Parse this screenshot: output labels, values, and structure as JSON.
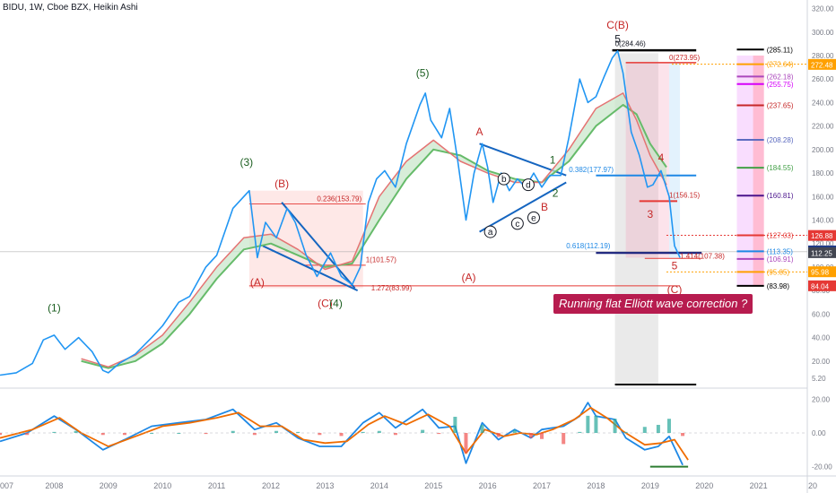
{
  "header": {
    "title": "BIDU, 1W, Cboe BZX, Heikin Ashi"
  },
  "callout": {
    "text": "Running flat Elliott wave correction ?"
  },
  "colors": {
    "price_line": "#2196f3",
    "price_dark": "#434651",
    "ema_fast": "#e57373",
    "ema_slow": "#66bb6a",
    "ema_fill": "#c8e6c9",
    "annotation_red": "#c62828",
    "annotation_green": "#1b5e20",
    "triangle_blue": "#1565c0",
    "macd_blue": "#1e88e5",
    "macd_orange": "#ef6c00",
    "hist_pos": "#26a69a",
    "hist_neg": "#ef5350"
  },
  "chart_data": [
    {
      "type": "line",
      "title": "BIDU, 1W, Cboe BZX, Heikin Ashi",
      "x_ticks": [
        "007",
        "2008",
        "2009",
        "2010",
        "2011",
        "2012",
        "2013",
        "2014",
        "2015",
        "2016",
        "2017",
        "2018",
        "2019",
        "2020",
        "2021",
        "20"
      ],
      "y_ticks": [
        "320.00",
        "300.00",
        "280.00",
        "260.00",
        "240.00",
        "220.00",
        "200.00",
        "180.00",
        "160.00",
        "140.00",
        "120.00",
        "100.00",
        "80.00",
        "60.00",
        "40.00",
        "20.00",
        "5.20"
      ],
      "ylim": [
        0,
        325
      ],
      "xlim": [
        2007.0,
        2021.9
      ],
      "series": [
        {
          "points": [
            [
              2007.0,
              8
            ],
            [
              2007.3,
              10
            ],
            [
              2007.6,
              18
            ],
            [
              2007.8,
              38
            ],
            [
              2008.0,
              42
            ],
            [
              2008.2,
              30
            ],
            [
              2008.45,
              40
            ],
            [
              2008.7,
              28
            ],
            [
              2008.9,
              12
            ],
            [
              2009.0,
              10
            ],
            [
              2009.2,
              18
            ],
            [
              2009.5,
              26
            ],
            [
              2009.8,
              40
            ],
            [
              2010.0,
              50
            ],
            [
              2010.3,
              70
            ],
            [
              2010.5,
              75
            ],
            [
              2010.8,
              100
            ],
            [
              2011.0,
              110
            ],
            [
              2011.3,
              150
            ],
            [
              2011.6,
              165
            ],
            [
              2011.75,
              108
            ],
            [
              2011.9,
              138
            ],
            [
              2012.1,
              125
            ],
            [
              2012.3,
              150
            ],
            [
              2012.45,
              138
            ],
            [
              2012.65,
              110
            ],
            [
              2012.85,
              92
            ],
            [
              2013.1,
              112
            ],
            [
              2013.3,
              92
            ],
            [
              2013.5,
              85
            ],
            [
              2013.65,
              100
            ],
            [
              2013.8,
              155
            ],
            [
              2013.95,
              175
            ],
            [
              2014.1,
              182
            ],
            [
              2014.3,
              168
            ],
            [
              2014.5,
              205
            ],
            [
              2014.75,
              238
            ],
            [
              2014.85,
              248
            ],
            [
              2014.95,
              225
            ],
            [
              2015.15,
              210
            ],
            [
              2015.3,
              235
            ],
            [
              2015.45,
              190
            ],
            [
              2015.6,
              140
            ],
            [
              2015.75,
              180
            ],
            [
              2015.9,
              205
            ],
            [
              2016.0,
              185
            ],
            [
              2016.1,
              155
            ],
            [
              2016.25,
              180
            ],
            [
              2016.4,
              165
            ],
            [
              2016.55,
              175
            ],
            [
              2016.7,
              168
            ],
            [
              2016.85,
              180
            ],
            [
              2017.0,
              168
            ],
            [
              2017.15,
              178
            ],
            [
              2017.35,
              178
            ],
            [
              2017.5,
              210
            ],
            [
              2017.7,
              260
            ],
            [
              2017.85,
              240
            ],
            [
              2018.0,
              245
            ],
            [
              2018.15,
              262
            ],
            [
              2018.3,
              278
            ],
            [
              2018.4,
              284
            ],
            [
              2018.5,
              265
            ],
            [
              2018.65,
              215
            ],
            [
              2018.8,
              195
            ],
            [
              2018.95,
              168
            ],
            [
              2019.05,
              170
            ],
            [
              2019.2,
              182
            ],
            [
              2019.35,
              160
            ],
            [
              2019.45,
              118
            ],
            [
              2019.55,
              108
            ]
          ]
        },
        {
          "name": "",
          "points": [
            [
              2008.5,
              22
            ],
            [
              2009.0,
              15
            ],
            [
              2009.5,
              25
            ],
            [
              2010.0,
              42
            ],
            [
              2010.5,
              70
            ],
            [
              2011.0,
              100
            ],
            [
              2011.5,
              125
            ],
            [
              2012.0,
              128
            ],
            [
              2012.5,
              115
            ],
            [
              2013.0,
              98
            ],
            [
              2013.5,
              105
            ],
            [
              2014.0,
              160
            ],
            [
              2014.5,
              190
            ],
            [
              2015.0,
              208
            ],
            [
              2015.5,
              190
            ],
            [
              2016.0,
              180
            ],
            [
              2016.5,
              172
            ],
            [
              2017.0,
              172
            ],
            [
              2017.5,
              200
            ],
            [
              2018.0,
              235
            ],
            [
              2018.5,
              248
            ],
            [
              2018.75,
              225
            ],
            [
              2019.0,
              195
            ],
            [
              2019.3,
              170
            ]
          ]
        },
        {
          "name": "",
          "points": [
            [
              2008.5,
              20
            ],
            [
              2009.0,
              14
            ],
            [
              2009.5,
              20
            ],
            [
              2010.0,
              35
            ],
            [
              2010.5,
              60
            ],
            [
              2011.0,
              90
            ],
            [
              2011.5,
              115
            ],
            [
              2012.0,
              120
            ],
            [
              2012.5,
              110
            ],
            [
              2013.0,
              100
            ],
            [
              2013.5,
              103
            ],
            [
              2014.0,
              140
            ],
            [
              2014.5,
              175
            ],
            [
              2015.0,
              200
            ],
            [
              2015.5,
              195
            ],
            [
              2016.0,
              182
            ],
            [
              2016.5,
              175
            ],
            [
              2017.0,
              172
            ],
            [
              2017.5,
              190
            ],
            [
              2018.0,
              220
            ],
            [
              2018.5,
              238
            ],
            [
              2018.75,
              230
            ],
            [
              2019.0,
              205
            ],
            [
              2019.3,
              185
            ]
          ]
        }
      ]
    },
    {
      "type": "line",
      "title": "",
      "ylim": [
        -25,
        25
      ],
      "y_ticks": [
        "20.00",
        "0.00",
        "-20.00"
      ],
      "series": [
        {
          "name": "",
          "points": [
            [
              2007.0,
              -5
            ],
            [
              2007.5,
              0
            ],
            [
              2008.0,
              10
            ],
            [
              2008.4,
              2
            ],
            [
              2008.9,
              -10
            ],
            [
              2009.3,
              -4
            ],
            [
              2009.8,
              4
            ],
            [
              2010.3,
              6
            ],
            [
              2010.8,
              8
            ],
            [
              2011.3,
              14
            ],
            [
              2011.7,
              2
            ],
            [
              2012.1,
              6
            ],
            [
              2012.5,
              -3
            ],
            [
              2012.9,
              -8
            ],
            [
              2013.3,
              -8
            ],
            [
              2013.7,
              6
            ],
            [
              2014.0,
              12
            ],
            [
              2014.3,
              3
            ],
            [
              2014.8,
              14
            ],
            [
              2015.1,
              3
            ],
            [
              2015.4,
              4
            ],
            [
              2015.6,
              -18
            ],
            [
              2015.9,
              6
            ],
            [
              2016.2,
              -4
            ],
            [
              2016.5,
              2
            ],
            [
              2016.8,
              -3
            ],
            [
              2017.0,
              2
            ],
            [
              2017.4,
              4
            ],
            [
              2017.7,
              10
            ],
            [
              2017.85,
              18
            ],
            [
              2018.0,
              10
            ],
            [
              2018.35,
              8
            ],
            [
              2018.55,
              -3
            ],
            [
              2018.9,
              -10
            ],
            [
              2019.15,
              -8
            ],
            [
              2019.35,
              -2
            ],
            [
              2019.6,
              -19
            ]
          ]
        },
        {
          "name": "",
          "points": [
            [
              2007.0,
              -3
            ],
            [
              2007.6,
              2
            ],
            [
              2008.1,
              9
            ],
            [
              2008.5,
              0
            ],
            [
              2009.0,
              -8
            ],
            [
              2009.5,
              -2
            ],
            [
              2010.0,
              4
            ],
            [
              2010.5,
              6
            ],
            [
              2011.0,
              9
            ],
            [
              2011.4,
              12
            ],
            [
              2011.8,
              4
            ],
            [
              2012.2,
              4
            ],
            [
              2012.6,
              -4
            ],
            [
              2013.0,
              -6
            ],
            [
              2013.4,
              -5
            ],
            [
              2013.8,
              5
            ],
            [
              2014.1,
              10
            ],
            [
              2014.5,
              5
            ],
            [
              2014.9,
              11
            ],
            [
              2015.3,
              4
            ],
            [
              2015.6,
              -12
            ],
            [
              2015.95,
              2
            ],
            [
              2016.3,
              -2
            ],
            [
              2016.6,
              0
            ],
            [
              2016.9,
              -1
            ],
            [
              2017.2,
              2
            ],
            [
              2017.6,
              8
            ],
            [
              2017.9,
              15
            ],
            [
              2018.2,
              9
            ],
            [
              2018.5,
              1
            ],
            [
              2018.9,
              -7
            ],
            [
              2019.2,
              -6
            ],
            [
              2019.45,
              -4
            ],
            [
              2019.7,
              -16
            ]
          ]
        }
      ]
    }
  ],
  "annotations": {
    "wave_labels": [
      "(1)",
      "(3)",
      "(5)",
      "(A)",
      "(B)",
      "(C)",
      "(4)",
      "A",
      "B",
      "1",
      "2",
      "3",
      "4",
      "5",
      "C(B)",
      "(C)"
    ],
    "circle_labels": [
      "a",
      "b",
      "c",
      "d",
      "e"
    ],
    "fib_labels": [
      "0(284.46)",
      "0(273.95)",
      "0.382(177.97)",
      "1(156.15)",
      "0.618(112.19)",
      "1.414(107.38)",
      "1(101.57)",
      "1.272(83.99)",
      "0.236(153.79)",
      "(285.11)",
      "(272.64)",
      "(262.18)",
      "(255.75)",
      "(237.65)",
      "(208.28)",
      "(184.55)",
      "(160.81)",
      "(127.03)",
      "(113.35)",
      "(106.91)",
      "(95.85)",
      "(83.98)"
    ],
    "price_tags": [
      "272.48",
      "126.88",
      "113.73",
      "112.25",
      "95.98",
      "84.04"
    ]
  }
}
